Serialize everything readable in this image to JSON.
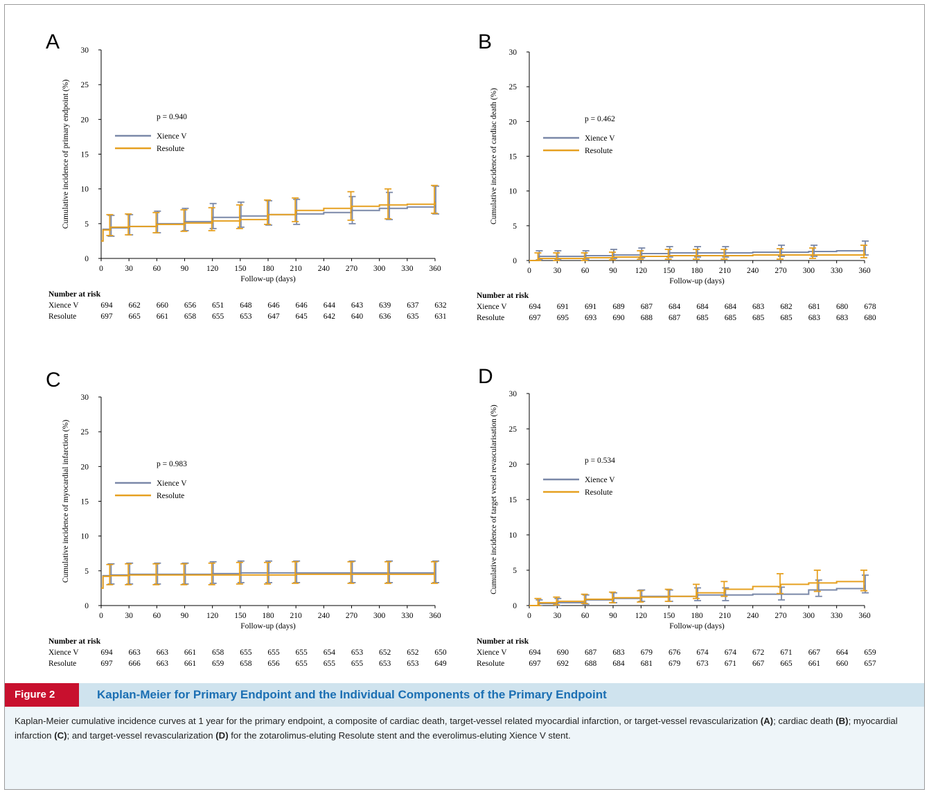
{
  "figure": {
    "tag": "Figure 2",
    "title": "Kaplan-Meier for Primary Endpoint and the Individual Components of the Primary Endpoint",
    "caption": [
      {
        "t": "Kaplan-Meier cumulative incidence curves at 1 year for the primary endpoint, a composite of cardiac death, target-vessel related myocardial infarction, or target-vessel revascularization ",
        "b": false
      },
      {
        "t": "(A)",
        "b": true
      },
      {
        "t": "; cardiac death ",
        "b": false
      },
      {
        "t": "(B)",
        "b": true
      },
      {
        "t": "; myocardial infarction ",
        "b": false
      },
      {
        "t": "(C)",
        "b": true
      },
      {
        "t": "; and target-vessel revascularization ",
        "b": false
      },
      {
        "t": "(D)",
        "b": true
      },
      {
        "t": " for the zotarolimus-eluting Resolute stent and the everolimus-eluting Xience V stent.",
        "b": false
      }
    ]
  },
  "colors": {
    "xience": "#7a88a8",
    "resolute": "#e6a020",
    "axis": "#000000"
  },
  "shared": {
    "xlabel": "Follow-up (days)",
    "risk_title": "Number at risk",
    "legend": [
      "Xience V",
      "Resolute"
    ],
    "x_ticks": [
      0,
      30,
      60,
      90,
      120,
      150,
      180,
      210,
      240,
      270,
      300,
      330,
      360
    ],
    "y_ticks": [
      0,
      5,
      10,
      15,
      20,
      25,
      30
    ]
  },
  "chart_data": [
    {
      "panel": "A",
      "type": "line",
      "ylabel": "Cumulative incidence of primary endpoint (%)",
      "p_value": "p = 0.940",
      "xlim": [
        0,
        360
      ],
      "ylim": [
        0,
        30
      ],
      "series": [
        {
          "name": "Xience V",
          "x": [
            0,
            2,
            10,
            30,
            60,
            90,
            120,
            150,
            180,
            210,
            240,
            270,
            300,
            330,
            360
          ],
          "y": [
            2.5,
            4.2,
            4.4,
            4.6,
            5.0,
            5.3,
            5.9,
            6.1,
            6.3,
            6.4,
            6.6,
            6.9,
            7.2,
            7.4,
            8.2
          ],
          "ci": [
            [
              10,
              3.2,
              6.2
            ],
            [
              30,
              3.4,
              6.3
            ],
            [
              60,
              3.7,
              6.8
            ],
            [
              90,
              4.0,
              7.2
            ],
            [
              120,
              4.3,
              7.9
            ],
            [
              150,
              4.5,
              8.1
            ],
            [
              180,
              4.8,
              8.3
            ],
            [
              210,
              4.9,
              8.5
            ],
            [
              270,
              5.0,
              8.9
            ],
            [
              310,
              5.6,
              9.5
            ],
            [
              360,
              6.4,
              10.4
            ]
          ]
        },
        {
          "name": "Resolute",
          "x": [
            0,
            2,
            10,
            30,
            60,
            90,
            120,
            150,
            180,
            210,
            240,
            270,
            300,
            330,
            360
          ],
          "y": [
            2.5,
            4.1,
            4.5,
            4.6,
            4.9,
            5.1,
            5.4,
            5.6,
            6.3,
            6.9,
            7.2,
            7.5,
            7.7,
            7.8,
            8.1
          ],
          "ci": [
            [
              10,
              3.3,
              6.3
            ],
            [
              30,
              3.4,
              6.4
            ],
            [
              60,
              3.7,
              6.6
            ],
            [
              90,
              3.9,
              7.0
            ],
            [
              120,
              4.0,
              7.3
            ],
            [
              150,
              4.3,
              7.7
            ],
            [
              180,
              4.9,
              8.4
            ],
            [
              210,
              5.3,
              8.7
            ],
            [
              270,
              5.5,
              9.6
            ],
            [
              310,
              5.7,
              10.0
            ],
            [
              360,
              6.5,
              10.5
            ]
          ]
        }
      ],
      "risk": {
        "Xience V": [
          694,
          662,
          660,
          656,
          651,
          648,
          646,
          646,
          644,
          643,
          639,
          637,
          632
        ],
        "Resolute": [
          697,
          665,
          661,
          658,
          655,
          653,
          647,
          645,
          642,
          640,
          636,
          635,
          631
        ]
      }
    },
    {
      "panel": "B",
      "type": "line",
      "ylabel": "Cumulative incidence of cardiac death (%)",
      "p_value": "p = 0.462",
      "xlim": [
        0,
        360
      ],
      "ylim": [
        0,
        30
      ],
      "series": [
        {
          "name": "Xience V",
          "x": [
            0,
            10,
            30,
            60,
            90,
            120,
            150,
            180,
            210,
            240,
            270,
            300,
            330,
            360
          ],
          "y": [
            0,
            0.6,
            0.6,
            0.7,
            0.8,
            1.0,
            1.1,
            1.1,
            1.1,
            1.2,
            1.2,
            1.3,
            1.4,
            1.6
          ],
          "ci": [
            [
              10,
              0.1,
              1.4
            ],
            [
              30,
              0.1,
              1.4
            ],
            [
              60,
              0.2,
              1.4
            ],
            [
              90,
              0.3,
              1.6
            ],
            [
              120,
              0.4,
              1.8
            ],
            [
              150,
              0.5,
              2.0
            ],
            [
              180,
              0.5,
              2.0
            ],
            [
              210,
              0.5,
              2.0
            ],
            [
              270,
              0.6,
              2.2
            ],
            [
              305,
              0.6,
              2.2
            ],
            [
              360,
              0.8,
              2.8
            ]
          ]
        },
        {
          "name": "Resolute",
          "x": [
            0,
            10,
            30,
            60,
            90,
            120,
            150,
            180,
            210,
            240,
            270,
            300,
            330,
            360
          ],
          "y": [
            0,
            0.3,
            0.3,
            0.4,
            0.5,
            0.6,
            0.7,
            0.7,
            0.7,
            0.8,
            0.8,
            0.8,
            0.8,
            1.0
          ],
          "ci": [
            [
              10,
              0.0,
              1.1
            ],
            [
              30,
              0.0,
              1.1
            ],
            [
              60,
              0.0,
              1.1
            ],
            [
              90,
              0.1,
              1.2
            ],
            [
              120,
              0.2,
              1.4
            ],
            [
              150,
              0.2,
              1.6
            ],
            [
              180,
              0.2,
              1.6
            ],
            [
              210,
              0.2,
              1.6
            ],
            [
              270,
              0.2,
              1.7
            ],
            [
              305,
              0.3,
              1.8
            ],
            [
              360,
              0.4,
              2.2
            ]
          ]
        }
      ],
      "risk": {
        "Xience V": [
          694,
          691,
          691,
          689,
          687,
          684,
          684,
          684,
          683,
          682,
          681,
          680,
          678
        ],
        "Resolute": [
          697,
          695,
          693,
          690,
          688,
          687,
          685,
          685,
          685,
          685,
          683,
          683,
          680
        ]
      }
    },
    {
      "panel": "C",
      "type": "line",
      "ylabel": "Cumulative incidence of myocardial infarction (%)",
      "p_value": "p = 0.983",
      "xlim": [
        0,
        360
      ],
      "ylim": [
        0,
        30
      ],
      "series": [
        {
          "name": "Xience V",
          "x": [
            0,
            2,
            10,
            30,
            60,
            90,
            120,
            150,
            180,
            210,
            240,
            270,
            300,
            330,
            360
          ],
          "y": [
            2.5,
            4.3,
            4.4,
            4.5,
            4.5,
            4.5,
            4.6,
            4.7,
            4.7,
            4.7,
            4.7,
            4.7,
            4.7,
            4.7,
            4.7
          ],
          "ci": [
            [
              10,
              3.1,
              6.0
            ],
            [
              30,
              3.1,
              6.1
            ],
            [
              60,
              3.1,
              6.1
            ],
            [
              90,
              3.1,
              6.1
            ],
            [
              120,
              3.2,
              6.3
            ],
            [
              150,
              3.3,
              6.4
            ],
            [
              180,
              3.3,
              6.4
            ],
            [
              210,
              3.3,
              6.4
            ],
            [
              270,
              3.3,
              6.4
            ],
            [
              310,
              3.3,
              6.4
            ],
            [
              360,
              3.3,
              6.4
            ]
          ]
        },
        {
          "name": "Resolute",
          "x": [
            0,
            2,
            10,
            30,
            60,
            90,
            120,
            150,
            180,
            210,
            240,
            270,
            300,
            330,
            360
          ],
          "y": [
            2.5,
            4.2,
            4.3,
            4.4,
            4.4,
            4.4,
            4.4,
            4.4,
            4.4,
            4.5,
            4.5,
            4.5,
            4.5,
            4.5,
            4.5
          ],
          "ci": [
            [
              10,
              3.0,
              5.9
            ],
            [
              30,
              3.0,
              6.0
            ],
            [
              60,
              3.0,
              6.0
            ],
            [
              90,
              3.0,
              6.0
            ],
            [
              120,
              3.0,
              6.1
            ],
            [
              150,
              3.1,
              6.2
            ],
            [
              180,
              3.1,
              6.2
            ],
            [
              210,
              3.2,
              6.3
            ],
            [
              270,
              3.2,
              6.3
            ],
            [
              310,
              3.2,
              6.3
            ],
            [
              360,
              3.2,
              6.3
            ]
          ]
        }
      ],
      "risk": {
        "Xience V": [
          694,
          663,
          663,
          661,
          658,
          655,
          655,
          655,
          654,
          653,
          652,
          652,
          650
        ],
        "Resolute": [
          697,
          666,
          663,
          661,
          659,
          658,
          656,
          655,
          655,
          655,
          653,
          653,
          649
        ]
      }
    },
    {
      "panel": "D",
      "type": "line",
      "ylabel": "Cumulative incidence of target vessel revascularisation (%)",
      "p_value": "p = 0.534",
      "xlim": [
        0,
        360
      ],
      "ylim": [
        0,
        30
      ],
      "series": [
        {
          "name": "Xience V",
          "x": [
            0,
            10,
            30,
            60,
            90,
            120,
            150,
            180,
            210,
            240,
            270,
            300,
            330,
            360
          ],
          "y": [
            0,
            0.3,
            0.4,
            0.8,
            1.0,
            1.3,
            1.3,
            1.5,
            1.5,
            1.6,
            1.6,
            2.2,
            2.4,
            2.9
          ],
          "ci": [
            [
              10,
              0.0,
              0.8
            ],
            [
              30,
              0.0,
              1.0
            ],
            [
              60,
              0.2,
              1.5
            ],
            [
              90,
              0.4,
              1.8
            ],
            [
              120,
              0.6,
              2.2
            ],
            [
              150,
              0.6,
              2.2
            ],
            [
              180,
              0.7,
              2.5
            ],
            [
              210,
              0.7,
              2.5
            ],
            [
              270,
              0.8,
              2.6
            ],
            [
              310,
              1.3,
              3.6
            ],
            [
              360,
              1.8,
              4.3
            ]
          ]
        },
        {
          "name": "Resolute",
          "x": [
            0,
            10,
            30,
            60,
            90,
            120,
            150,
            180,
            210,
            240,
            270,
            300,
            330,
            360
          ],
          "y": [
            0,
            0.4,
            0.6,
            0.9,
            1.1,
            1.2,
            1.3,
            1.8,
            2.3,
            2.7,
            3.0,
            3.2,
            3.4,
            3.4
          ],
          "ci": [
            [
              10,
              0.0,
              1.0
            ],
            [
              30,
              0.1,
              1.2
            ],
            [
              60,
              0.3,
              1.6
            ],
            [
              90,
              0.4,
              1.9
            ],
            [
              120,
              0.5,
              2.1
            ],
            [
              150,
              0.6,
              2.3
            ],
            [
              180,
              1.0,
              3.0
            ],
            [
              210,
              1.3,
              3.4
            ],
            [
              270,
              1.7,
              4.5
            ],
            [
              310,
              2.0,
              5.0
            ],
            [
              360,
              2.1,
              5.0
            ]
          ]
        }
      ],
      "risk": {
        "Xience V": [
          694,
          690,
          687,
          683,
          679,
          676,
          674,
          674,
          672,
          671,
          667,
          664,
          659
        ],
        "Resolute": [
          697,
          692,
          688,
          684,
          681,
          679,
          673,
          671,
          667,
          665,
          661,
          660,
          657
        ]
      }
    }
  ]
}
